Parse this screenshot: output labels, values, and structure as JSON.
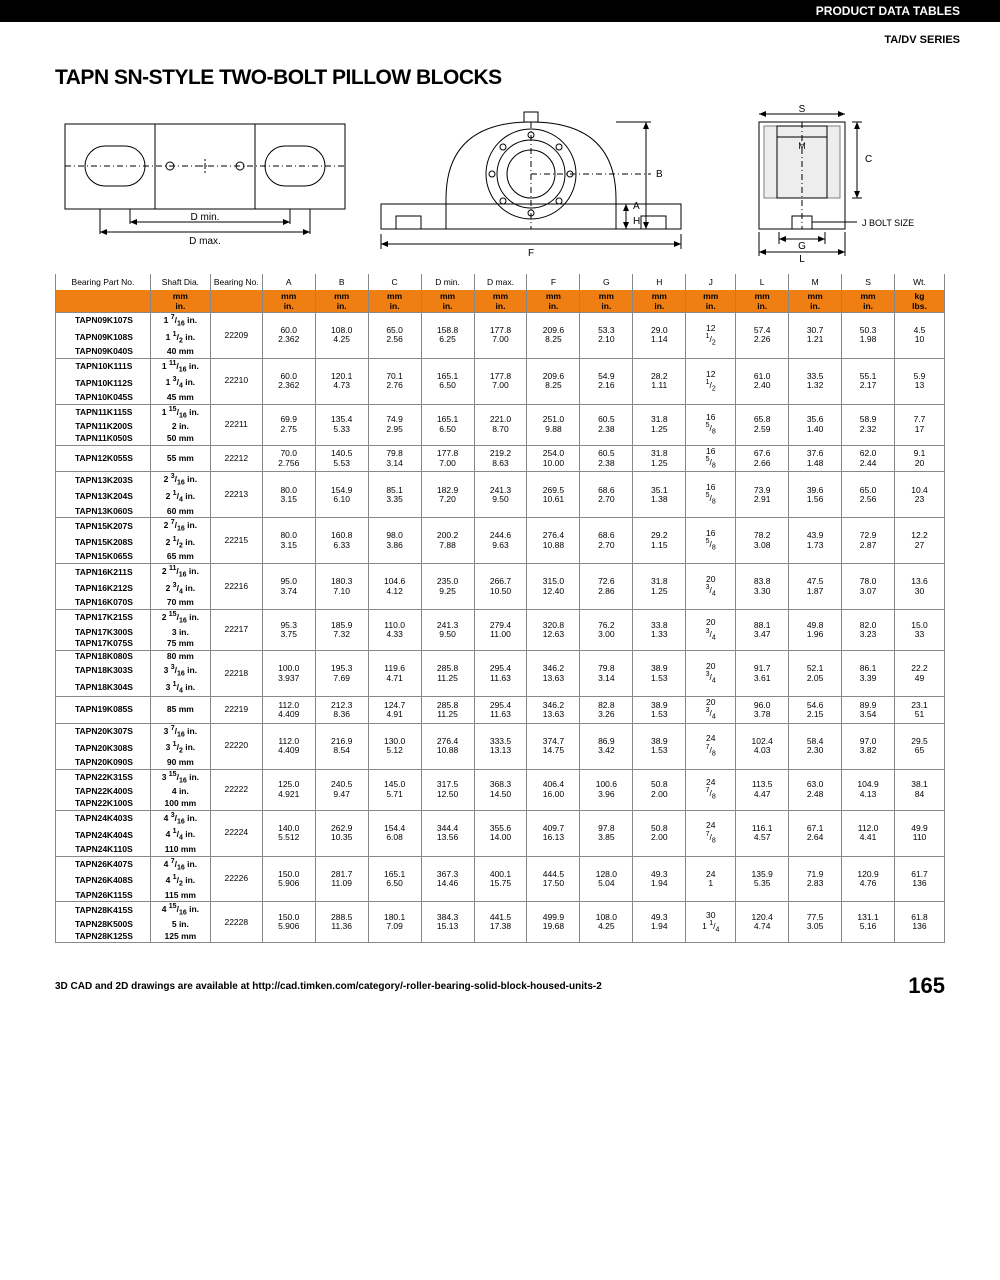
{
  "header": {
    "topbar": "PRODUCT DATA TABLES",
    "series": "TA/DV SERIES",
    "title": "TAPN SN-STYLE TWO-BOLT PILLOW BLOCKS"
  },
  "columns_row1": [
    "Bearing Part No.",
    "Shaft Dia.",
    "Bearing No.",
    "A",
    "B",
    "C",
    "D min.",
    "D max.",
    "F",
    "G",
    "H",
    "J",
    "L",
    "M",
    "S",
    "Wt."
  ],
  "columns_row2": [
    "",
    "mm\nin.",
    "",
    "mm\nin.",
    "mm\nin.",
    "mm\nin.",
    "mm\nin.",
    "mm\nin.",
    "mm\nin.",
    "mm\nin.",
    "mm\nin.",
    "mm\nin.",
    "mm\nin.",
    "mm\nin.",
    "mm\nin.",
    "kg\nlbs."
  ],
  "col_widths_pct": [
    9.5,
    6,
    5.2,
    5.3,
    5.3,
    5.3,
    5.3,
    5.3,
    5.3,
    5.3,
    5.3,
    5,
    5.3,
    5.3,
    5.3,
    5
  ],
  "groups": [
    {
      "parts": [
        "TAPN09K107S",
        "TAPN09K108S",
        "TAPN09K040S"
      ],
      "shafts": [
        "1 7/16 in.",
        "1 1/2 in.",
        "40 mm"
      ],
      "brg": "22209",
      "dims": [
        [
          "60.0",
          "2.362"
        ],
        [
          "108.0",
          "4.25"
        ],
        [
          "65.0",
          "2.56"
        ],
        [
          "158.8",
          "6.25"
        ],
        [
          "177.8",
          "7.00"
        ],
        [
          "209.6",
          "8.25"
        ],
        [
          "53.3",
          "2.10"
        ],
        [
          "29.0",
          "1.14"
        ],
        [
          "12",
          "1/2"
        ],
        [
          "57.4",
          "2.26"
        ],
        [
          "30.7",
          "1.21"
        ],
        [
          "50.3",
          "1.98"
        ],
        [
          "4.5",
          "10"
        ]
      ]
    },
    {
      "parts": [
        "TAPN10K111S",
        "TAPN10K112S",
        "TAPN10K045S"
      ],
      "shafts": [
        "1 11/16 in.",
        "1 3/4 in.",
        "45 mm"
      ],
      "brg": "22210",
      "dims": [
        [
          "60.0",
          "2.362"
        ],
        [
          "120.1",
          "4.73"
        ],
        [
          "70.1",
          "2.76"
        ],
        [
          "165.1",
          "6.50"
        ],
        [
          "177.8",
          "7.00"
        ],
        [
          "209.6",
          "8.25"
        ],
        [
          "54.9",
          "2.16"
        ],
        [
          "28.2",
          "1.11"
        ],
        [
          "12",
          "1/2"
        ],
        [
          "61.0",
          "2.40"
        ],
        [
          "33.5",
          "1.32"
        ],
        [
          "55.1",
          "2.17"
        ],
        [
          "5.9",
          "13"
        ]
      ]
    },
    {
      "parts": [
        "TAPN11K115S",
        "TAPN11K200S",
        "TAPN11K050S"
      ],
      "shafts": [
        "1 15/16 in.",
        "2 in.",
        "50 mm"
      ],
      "brg": "22211",
      "dims": [
        [
          "69.9",
          "2.75"
        ],
        [
          "135.4",
          "5.33"
        ],
        [
          "74.9",
          "2.95"
        ],
        [
          "165.1",
          "6.50"
        ],
        [
          "221.0",
          "8.70"
        ],
        [
          "251.0",
          "9.88"
        ],
        [
          "60.5",
          "2.38"
        ],
        [
          "31.8",
          "1.25"
        ],
        [
          "16",
          "5/8"
        ],
        [
          "65.8",
          "2.59"
        ],
        [
          "35.6",
          "1.40"
        ],
        [
          "58.9",
          "2.32"
        ],
        [
          "7.7",
          "17"
        ]
      ]
    },
    {
      "parts": [
        "TAPN12K055S"
      ],
      "shafts": [
        "55 mm"
      ],
      "brg": "22212",
      "dims": [
        [
          "70.0",
          "2.756"
        ],
        [
          "140.5",
          "5.53"
        ],
        [
          "79.8",
          "3.14"
        ],
        [
          "177.8",
          "7.00"
        ],
        [
          "219.2",
          "8.63"
        ],
        [
          "254.0",
          "10.00"
        ],
        [
          "60.5",
          "2.38"
        ],
        [
          "31.8",
          "1.25"
        ],
        [
          "16",
          "5/8"
        ],
        [
          "67.6",
          "2.66"
        ],
        [
          "37.6",
          "1.48"
        ],
        [
          "62.0",
          "2.44"
        ],
        [
          "9.1",
          "20"
        ]
      ]
    },
    {
      "parts": [
        "TAPN13K203S",
        "TAPN13K204S",
        "TAPN13K060S"
      ],
      "shafts": [
        "2 3/16 in.",
        "2 1/4 in.",
        "60 mm"
      ],
      "brg": "22213",
      "dims": [
        [
          "80.0",
          "3.15"
        ],
        [
          "154.9",
          "6.10"
        ],
        [
          "85.1",
          "3.35"
        ],
        [
          "182.9",
          "7.20"
        ],
        [
          "241.3",
          "9.50"
        ],
        [
          "269.5",
          "10.61"
        ],
        [
          "68.6",
          "2.70"
        ],
        [
          "35.1",
          "1.38"
        ],
        [
          "16",
          "5/8"
        ],
        [
          "73.9",
          "2.91"
        ],
        [
          "39.6",
          "1.56"
        ],
        [
          "65.0",
          "2.56"
        ],
        [
          "10.4",
          "23"
        ]
      ]
    },
    {
      "parts": [
        "TAPN15K207S",
        "TAPN15K208S",
        "TAPN15K065S"
      ],
      "shafts": [
        "2 7/16 in.",
        "2 1/2 in.",
        "65 mm"
      ],
      "brg": "22215",
      "dims": [
        [
          "80.0",
          "3.15"
        ],
        [
          "160.8",
          "6.33"
        ],
        [
          "98.0",
          "3.86"
        ],
        [
          "200.2",
          "7.88"
        ],
        [
          "244.6",
          "9.63"
        ],
        [
          "276.4",
          "10.88"
        ],
        [
          "68.6",
          "2.70"
        ],
        [
          "29.2",
          "1.15"
        ],
        [
          "16",
          "5/8"
        ],
        [
          "78.2",
          "3.08"
        ],
        [
          "43.9",
          "1.73"
        ],
        [
          "72.9",
          "2.87"
        ],
        [
          "12.2",
          "27"
        ]
      ]
    },
    {
      "parts": [
        "TAPN16K211S",
        "TAPN16K212S",
        "TAPN16K070S"
      ],
      "shafts": [
        "2 11/16 in.",
        "2 3/4 in.",
        "70 mm"
      ],
      "brg": "22216",
      "dims": [
        [
          "95.0",
          "3.74"
        ],
        [
          "180.3",
          "7.10"
        ],
        [
          "104.6",
          "4.12"
        ],
        [
          "235.0",
          "9.25"
        ],
        [
          "266.7",
          "10.50"
        ],
        [
          "315.0",
          "12.40"
        ],
        [
          "72.6",
          "2.86"
        ],
        [
          "31.8",
          "1.25"
        ],
        [
          "20",
          "3/4"
        ],
        [
          "83.8",
          "3.30"
        ],
        [
          "47.5",
          "1.87"
        ],
        [
          "78.0",
          "3.07"
        ],
        [
          "13.6",
          "30"
        ]
      ]
    },
    {
      "parts": [
        "TAPN17K215S",
        "TAPN17K300S",
        "TAPN17K075S"
      ],
      "shafts": [
        "2 15/16 in.",
        "3 in.",
        "75 mm"
      ],
      "brg": "22217",
      "dims": [
        [
          "95.3",
          "3.75"
        ],
        [
          "185.9",
          "7.32"
        ],
        [
          "110.0",
          "4.33"
        ],
        [
          "241.3",
          "9.50"
        ],
        [
          "279.4",
          "11.00"
        ],
        [
          "320.8",
          "12.63"
        ],
        [
          "76.2",
          "3.00"
        ],
        [
          "33.8",
          "1.33"
        ],
        [
          "20",
          "3/4"
        ],
        [
          "88.1",
          "3.47"
        ],
        [
          "49.8",
          "1.96"
        ],
        [
          "82.0",
          "3.23"
        ],
        [
          "15.0",
          "33"
        ]
      ]
    },
    {
      "parts": [
        "TAPN18K080S",
        "TAPN18K303S",
        "TAPN18K304S"
      ],
      "shafts": [
        "80 mm",
        "3 3/16 in.",
        "3 1/4 in."
      ],
      "brg": "22218",
      "dims": [
        [
          "100.0",
          "3.937"
        ],
        [
          "195.3",
          "7.69"
        ],
        [
          "119.6",
          "4.71"
        ],
        [
          "285.8",
          "11.25"
        ],
        [
          "295.4",
          "11.63"
        ],
        [
          "346.2",
          "13.63"
        ],
        [
          "79.8",
          "3.14"
        ],
        [
          "38.9",
          "1.53"
        ],
        [
          "20",
          "3/4"
        ],
        [
          "91.7",
          "3.61"
        ],
        [
          "52.1",
          "2.05"
        ],
        [
          "86.1",
          "3.39"
        ],
        [
          "22.2",
          "49"
        ]
      ]
    },
    {
      "parts": [
        "TAPN19K085S"
      ],
      "shafts": [
        "85 mm"
      ],
      "brg": "22219",
      "dims": [
        [
          "112.0",
          "4.409"
        ],
        [
          "212.3",
          "8.36"
        ],
        [
          "124.7",
          "4.91"
        ],
        [
          "285.8",
          "11.25"
        ],
        [
          "295.4",
          "11.63"
        ],
        [
          "346.2",
          "13.63"
        ],
        [
          "82.8",
          "3.26"
        ],
        [
          "38.9",
          "1.53"
        ],
        [
          "20",
          "3/4"
        ],
        [
          "96.0",
          "3.78"
        ],
        [
          "54.6",
          "2.15"
        ],
        [
          "89.9",
          "3.54"
        ],
        [
          "23.1",
          "51"
        ]
      ]
    },
    {
      "parts": [
        "TAPN20K307S",
        "TAPN20K308S",
        "TAPN20K090S"
      ],
      "shafts": [
        "3 7/16 in.",
        "3 1/2 in.",
        "90 mm"
      ],
      "brg": "22220",
      "dims": [
        [
          "112.0",
          "4.409"
        ],
        [
          "216.9",
          "8.54"
        ],
        [
          "130.0",
          "5.12"
        ],
        [
          "276.4",
          "10.88"
        ],
        [
          "333.5",
          "13.13"
        ],
        [
          "374.7",
          "14.75"
        ],
        [
          "86.9",
          "3.42"
        ],
        [
          "38.9",
          "1.53"
        ],
        [
          "24",
          "7/8"
        ],
        [
          "102.4",
          "4.03"
        ],
        [
          "58.4",
          "2.30"
        ],
        [
          "97.0",
          "3.82"
        ],
        [
          "29.5",
          "65"
        ]
      ]
    },
    {
      "parts": [
        "TAPN22K315S",
        "TAPN22K400S",
        "TAPN22K100S"
      ],
      "shafts": [
        "3 15/16 in.",
        "4 in.",
        "100 mm"
      ],
      "brg": "22222",
      "dims": [
        [
          "125.0",
          "4.921"
        ],
        [
          "240.5",
          "9.47"
        ],
        [
          "145.0",
          "5.71"
        ],
        [
          "317.5",
          "12.50"
        ],
        [
          "368.3",
          "14.50"
        ],
        [
          "406.4",
          "16.00"
        ],
        [
          "100.6",
          "3.96"
        ],
        [
          "50.8",
          "2.00"
        ],
        [
          "24",
          "7/8"
        ],
        [
          "113.5",
          "4.47"
        ],
        [
          "63.0",
          "2.48"
        ],
        [
          "104.9",
          "4.13"
        ],
        [
          "38.1",
          "84"
        ]
      ]
    },
    {
      "parts": [
        "TAPN24K403S",
        "TAPN24K404S",
        "TAPN24K110S"
      ],
      "shafts": [
        "4 3/16 in.",
        "4 1/4 in.",
        "110 mm"
      ],
      "brg": "22224",
      "dims": [
        [
          "140.0",
          "5.512"
        ],
        [
          "262.9",
          "10.35"
        ],
        [
          "154.4",
          "6.08"
        ],
        [
          "344.4",
          "13.56"
        ],
        [
          "355.6",
          "14.00"
        ],
        [
          "409.7",
          "16.13"
        ],
        [
          "97.8",
          "3.85"
        ],
        [
          "50.8",
          "2.00"
        ],
        [
          "24",
          "7/8"
        ],
        [
          "116.1",
          "4.57"
        ],
        [
          "67.1",
          "2.64"
        ],
        [
          "112.0",
          "4.41"
        ],
        [
          "49.9",
          "110"
        ]
      ]
    },
    {
      "parts": [
        "TAPN26K407S",
        "TAPN26K408S",
        "TAPN26K115S"
      ],
      "shafts": [
        "4 7/16 in.",
        "4 1/2 in.",
        "115 mm"
      ],
      "brg": "22226",
      "dims": [
        [
          "150.0",
          "5.906"
        ],
        [
          "281.7",
          "11.09"
        ],
        [
          "165.1",
          "6.50"
        ],
        [
          "367.3",
          "14.46"
        ],
        [
          "400.1",
          "15.75"
        ],
        [
          "444.5",
          "17.50"
        ],
        [
          "128.0",
          "5.04"
        ],
        [
          "49.3",
          "1.94"
        ],
        [
          "24",
          "1"
        ],
        [
          "135.9",
          "5.35"
        ],
        [
          "71.9",
          "2.83"
        ],
        [
          "120.9",
          "4.76"
        ],
        [
          "61.7",
          "136"
        ]
      ]
    },
    {
      "parts": [
        "TAPN28K415S",
        "TAPN28K500S",
        "TAPN28K125S"
      ],
      "shafts": [
        "4 15/16 in.",
        "5 in.",
        "125 mm"
      ],
      "brg": "22228",
      "dims": [
        [
          "150.0",
          "5.906"
        ],
        [
          "288.5",
          "11.36"
        ],
        [
          "180.1",
          "7.09"
        ],
        [
          "384.3",
          "15.13"
        ],
        [
          "441.5",
          "17.38"
        ],
        [
          "499.9",
          "19.68"
        ],
        [
          "108.0",
          "4.25"
        ],
        [
          "49.3",
          "1.94"
        ],
        [
          "30",
          "1 1/4"
        ],
        [
          "120.4",
          "4.74"
        ],
        [
          "77.5",
          "3.05"
        ],
        [
          "131.1",
          "5.16"
        ],
        [
          "61.8",
          "136"
        ]
      ]
    }
  ],
  "footer": {
    "note": "3D CAD and 2D drawings are available at http://cad.timken.com/category/-roller-bearing-solid-block-housed-units-2",
    "page": "165"
  },
  "colors": {
    "accent": "#f07f13",
    "border": "#888888"
  }
}
